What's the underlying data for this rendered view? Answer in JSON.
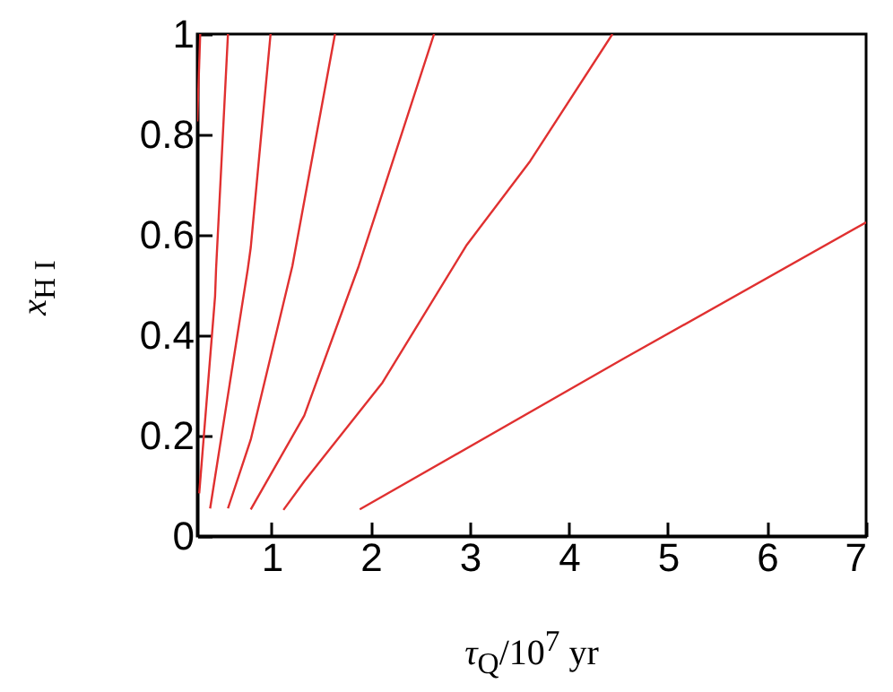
{
  "chart_data": {
    "type": "line",
    "xlabel": "τ$_{Q}$/10$^{7}$ yr",
    "ylabel": "x$_{H I}$",
    "xlim": [
      0.25,
      7
    ],
    "ylim": [
      0,
      1
    ],
    "xticks": [
      1,
      2,
      3,
      4,
      5,
      6,
      7
    ],
    "yticks": [
      0,
      0.2,
      0.4,
      0.6,
      0.8,
      1
    ],
    "grid": false,
    "series": [
      {
        "color": "#e03030",
        "x": [
          0.25,
          0.28
        ],
        "values": [
          0.826,
          1
        ]
      },
      {
        "color": "#e03030",
        "x": [
          0.27,
          0.43,
          0.44,
          0.56
        ],
        "values": [
          0.085,
          0.478,
          0.532,
          1
        ]
      },
      {
        "color": "#e03030",
        "x": [
          0.38,
          0.76,
          0.79,
          0.99
        ],
        "values": [
          0.055,
          0.532,
          0.575,
          1
        ]
      },
      {
        "color": "#e03030",
        "x": [
          0.56,
          0.79,
          1.21,
          1.64
        ],
        "values": [
          0.055,
          0.192,
          0.538,
          1
        ]
      },
      {
        "color": "#e03030",
        "x": [
          0.79,
          1.33,
          1.88,
          2.64
        ],
        "values": [
          0.053,
          0.24,
          0.538,
          1
        ]
      },
      {
        "color": "#e03030",
        "x": [
          1.12,
          1.33,
          2.12,
          2.97,
          3.61,
          4.44
        ],
        "values": [
          0.052,
          0.109,
          0.306,
          0.58,
          0.747,
          1
        ]
      },
      {
        "color": "#e03030",
        "x": [
          1.89,
          4.55,
          7
        ],
        "values": [
          0.053,
          0.353,
          0.625
        ]
      }
    ]
  }
}
